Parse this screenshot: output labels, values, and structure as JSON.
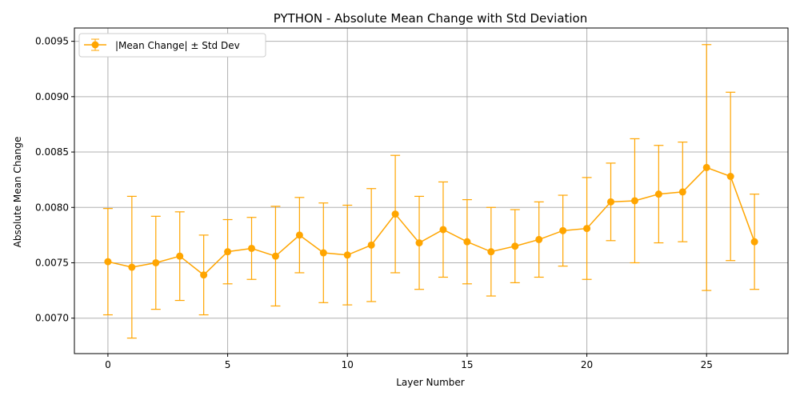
{
  "chart_data": {
    "type": "line",
    "title": "PYTHON - Absolute Mean Change with Std Deviation",
    "xlabel": "Layer Number",
    "ylabel": "Absolute Mean Change",
    "xlim": [
      -1.4,
      28.4
    ],
    "ylim": [
      0.00668,
      0.00962
    ],
    "xticks": [
      0,
      5,
      10,
      15,
      20,
      25
    ],
    "yticks": [
      0.007,
      0.0075,
      0.008,
      0.0085,
      0.009,
      0.0095
    ],
    "ytick_labels": [
      "0.0070",
      "0.0075",
      "0.0080",
      "0.0085",
      "0.0090",
      "0.0095"
    ],
    "grid": true,
    "legend_position": "top-left",
    "color": "#ffa500",
    "series": [
      {
        "name": "|Mean Change| ± Std Dev",
        "x": [
          0,
          1,
          2,
          3,
          4,
          5,
          6,
          7,
          8,
          9,
          10,
          11,
          12,
          13,
          14,
          15,
          16,
          17,
          18,
          19,
          20,
          21,
          22,
          23,
          24,
          25,
          26,
          27
        ],
        "y": [
          0.00751,
          0.00746,
          0.0075,
          0.00756,
          0.00739,
          0.0076,
          0.00763,
          0.00756,
          0.00775,
          0.00759,
          0.00757,
          0.00766,
          0.00794,
          0.00768,
          0.0078,
          0.00769,
          0.0076,
          0.00765,
          0.00771,
          0.00779,
          0.00781,
          0.00805,
          0.00806,
          0.00812,
          0.00814,
          0.00836,
          0.00828,
          0.00769
        ],
        "err": [
          0.00048,
          0.00064,
          0.00042,
          0.0004,
          0.00036,
          0.00029,
          0.00028,
          0.00045,
          0.00034,
          0.00045,
          0.00045,
          0.00051,
          0.00053,
          0.00042,
          0.00043,
          0.00038,
          0.0004,
          0.00033,
          0.00034,
          0.00032,
          0.00046,
          0.00035,
          0.00056,
          0.00044,
          0.00045,
          0.00111,
          0.00076,
          0.00043
        ]
      }
    ]
  }
}
